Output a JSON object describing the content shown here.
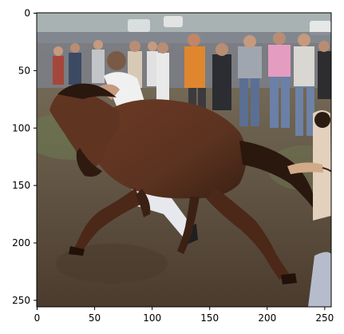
{
  "chart_data": {
    "type": "image",
    "image_shape": [
      256,
      256
    ],
    "xlim": [
      0,
      256
    ],
    "ylim": [
      256,
      0
    ],
    "x_ticks": [
      0,
      50,
      100,
      150,
      200,
      250
    ],
    "y_ticks": [
      0,
      50,
      100,
      150,
      200,
      250
    ],
    "grid": false,
    "title": "",
    "xlabel": "",
    "ylabel": ""
  },
  "photo": {
    "subject": "horse-rearing-with-rider",
    "colors": {
      "ground_dark": "#4a3a2c",
      "ground_light": "#8f7d66",
      "grass": "#6c7a52",
      "horse": "#5b3220",
      "horse_dark": "#2f1a10",
      "crowd_mid": "#7b7f88",
      "sky_bg": "#a9b2b2"
    }
  }
}
